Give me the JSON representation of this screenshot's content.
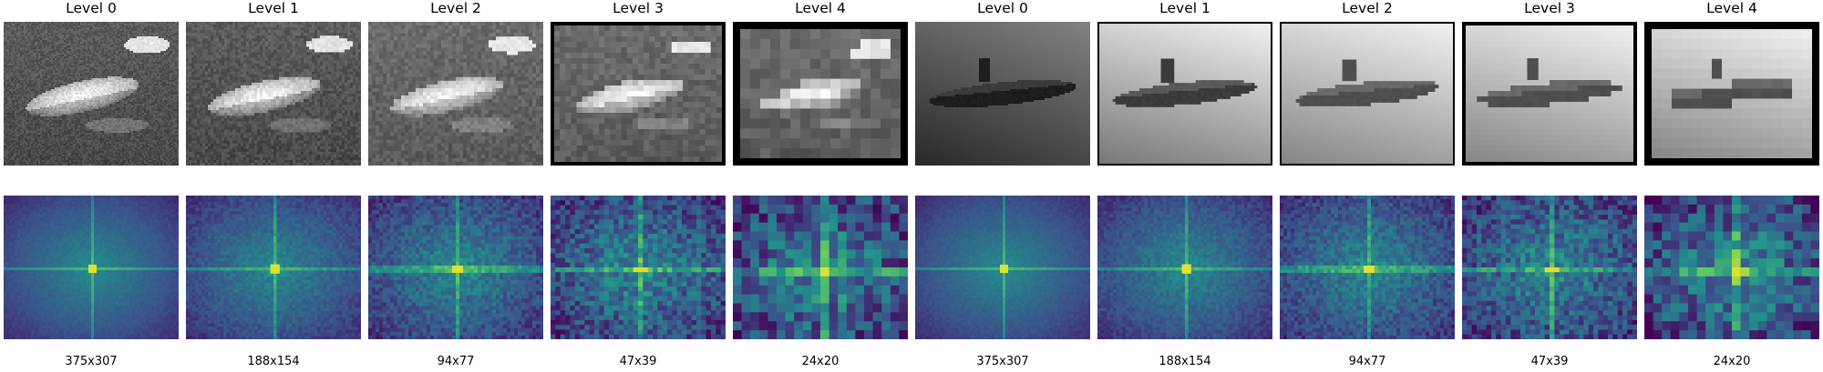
{
  "columns": [
    {
      "level": "Level 0",
      "size": "375x307",
      "subject": "fish"
    },
    {
      "level": "Level 1",
      "size": "188x154",
      "subject": "fish"
    },
    {
      "level": "Level 2",
      "size": "94x77",
      "subject": "fish"
    },
    {
      "level": "Level 3",
      "size": "47x39",
      "subject": "fish"
    },
    {
      "level": "Level 4",
      "size": "24x20",
      "subject": "fish"
    },
    {
      "level": "Level 0",
      "size": "375x307",
      "subject": "submarine"
    },
    {
      "level": "Level 1",
      "size": "188x154",
      "subject": "submarine"
    },
    {
      "level": "Level 2",
      "size": "94x77",
      "subject": "submarine"
    },
    {
      "level": "Level 3",
      "size": "47x39",
      "subject": "submarine"
    },
    {
      "level": "Level 4",
      "size": "24x20",
      "subject": "submarine"
    }
  ],
  "colors": {
    "spectrum_dark": "#3b3f8a",
    "spectrum_mid": "#21908d",
    "spectrum_bright": "#fde725"
  }
}
